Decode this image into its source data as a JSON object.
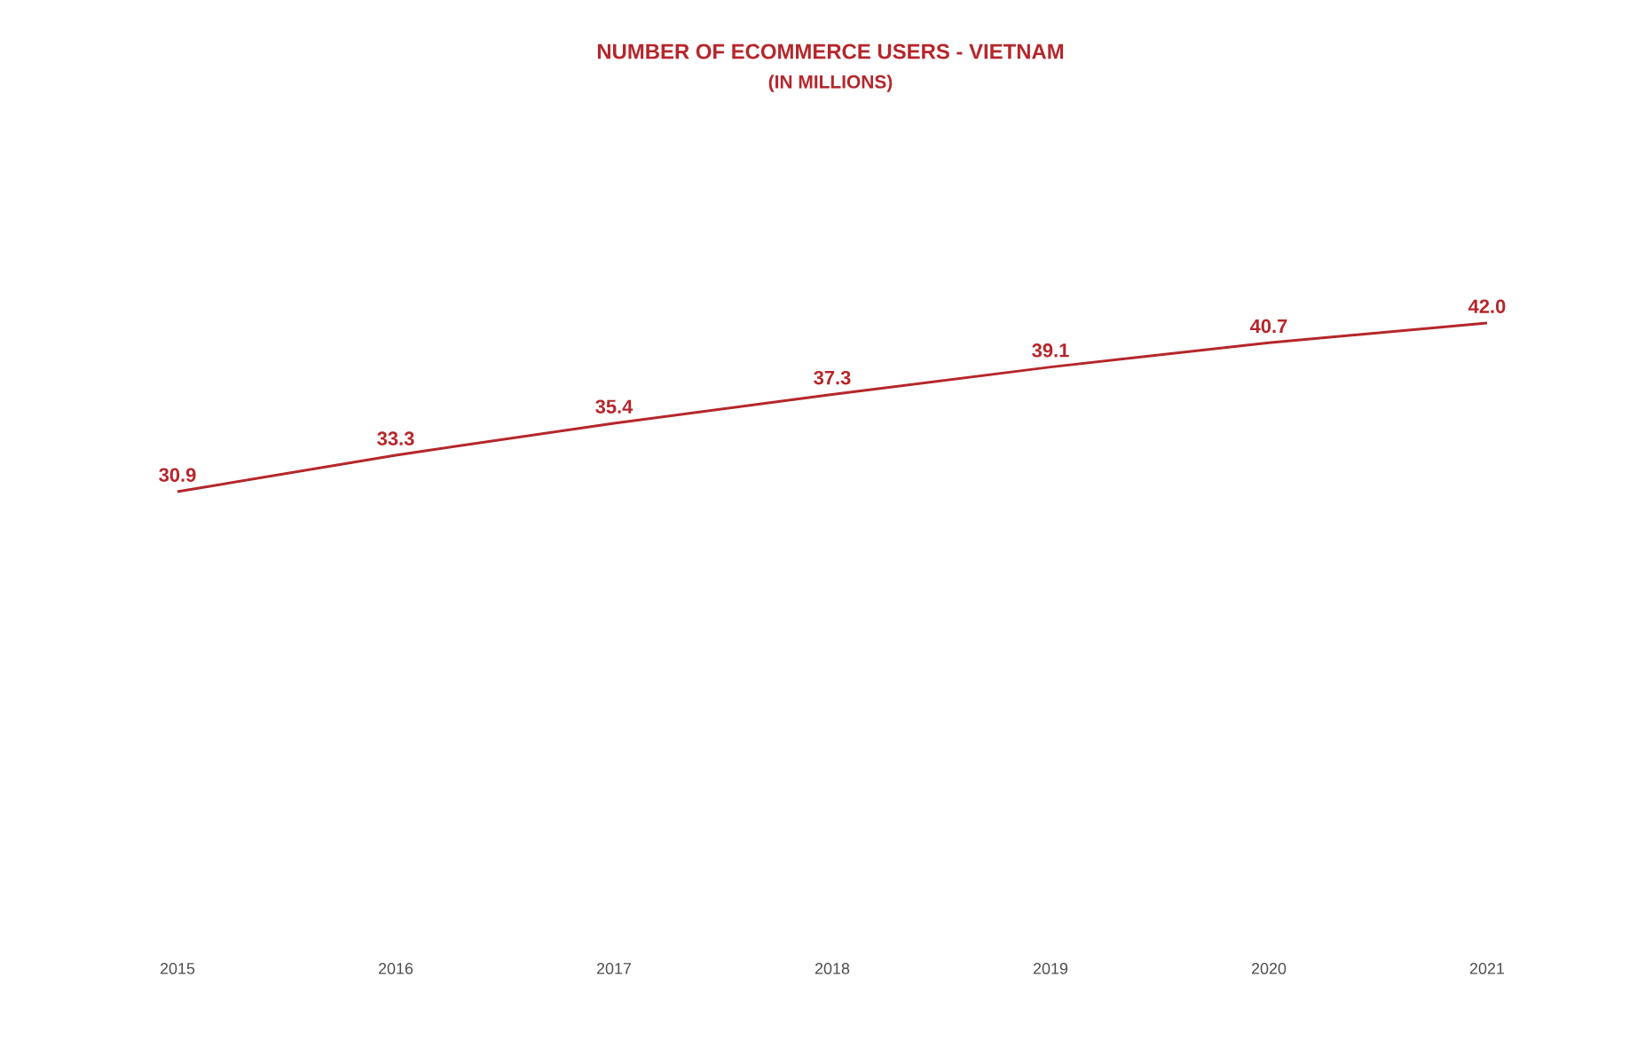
{
  "chart_data": {
    "type": "line",
    "title": "NUMBER OF ECOMMERCE  USERS - VIETNAM",
    "subtitle": "(IN MILLIONS)",
    "categories": [
      "2015",
      "2016",
      "2017",
      "2018",
      "2019",
      "2020",
      "2021"
    ],
    "values": [
      30.9,
      33.3,
      35.4,
      37.3,
      39.1,
      40.7,
      42.0
    ],
    "value_labels": [
      "30.9",
      "33.3",
      "35.4",
      "37.3",
      "39.1",
      "40.7",
      "42.0"
    ],
    "color": "#b5262b",
    "line_style": "solid"
  }
}
